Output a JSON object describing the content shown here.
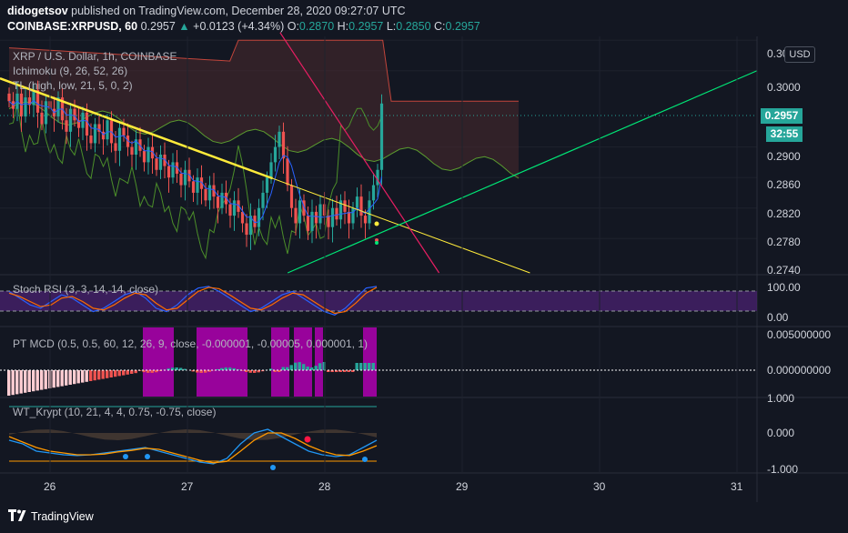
{
  "header": {
    "publisher": "didogetsov",
    "published_text": "published on TradingView.com, December 28, 2020 09:27:07 UTC",
    "symbol": "COINBASE:XRPUSD, 60",
    "last": "0.2957",
    "change": "+0.0123 (+4.34%)",
    "o_label": "O:",
    "o_val": "0.2870",
    "h_label": "H:",
    "h_val": "0.2957",
    "l_label": "L:",
    "l_val": "0.2850",
    "c_label": "C:",
    "c_val": "0.2957"
  },
  "legend": {
    "title": "XRP / U.S. Dollar, 1h, COINBASE",
    "ichimoku": "Ichimoku (9, 26, 52, 26)",
    "tl": "TL (high, low, 21, 5, 0, 2)",
    "stoch": "Stoch RSI (3, 3, 14, 14, close)",
    "ptmcd": "PT MCD (0.5, 0.5, 60, 12, 26, 9, close, -0.000001, -0.00005, 0.000001, 1)",
    "wt": "WT_Krypt (10, 21, 4, 4, 0.75, -0.75, close)"
  },
  "price_axis": {
    "currency": "USD",
    "ticks": [
      "0.3040",
      "0.3000",
      "0.2900",
      "0.2860",
      "0.2820",
      "0.2780",
      "0.2740"
    ],
    "current_price": "0.2957",
    "countdown": "32:55"
  },
  "stoch_axis": {
    "ticks": [
      "100.00",
      "0.00"
    ]
  },
  "mcd_axis": {
    "ticks": [
      "0.005000000",
      "0.000000000"
    ]
  },
  "wt_axis": {
    "ticks": [
      "1.000",
      "0.000",
      "-1.000"
    ]
  },
  "x_axis": {
    "labels": [
      "26",
      "27",
      "28",
      "29",
      "30",
      "31"
    ]
  },
  "footer": {
    "brand": "TradingView"
  },
  "colors": {
    "background": "#131722",
    "up": "#26a69a",
    "down": "#ef5350",
    "ichimoku_base": "#2962ff",
    "trend_yellow": "#ffeb3b",
    "trend_magenta": "#e91e63",
    "trend_green": "#00e676",
    "cloud": "#4a2a2e",
    "stoch_fill": "#4a2270",
    "mcd_magenta": "#b000b0"
  },
  "chart_data": {
    "type": "candlestick",
    "interval": "1h",
    "y_range": [
      0.2735,
      0.3045
    ],
    "x_ticks": [
      "26",
      "27",
      "28",
      "29",
      "30",
      "31"
    ],
    "last_price": 0.2957,
    "candles_close": [
      0.296,
      0.295,
      0.297,
      0.294,
      0.2965,
      0.2955,
      0.2975,
      0.2945,
      0.293,
      0.296,
      0.295,
      0.294,
      0.2965,
      0.2935,
      0.292,
      0.295,
      0.2935,
      0.2925,
      0.2945,
      0.2915,
      0.2905,
      0.293,
      0.292,
      0.291,
      0.2935,
      0.2905,
      0.2895,
      0.2925,
      0.2915,
      0.29,
      0.289,
      0.291,
      0.2895,
      0.288,
      0.29,
      0.2885,
      0.287,
      0.289,
      0.2875,
      0.286,
      0.288,
      0.2865,
      0.285,
      0.287,
      0.2855,
      0.284,
      0.286,
      0.2845,
      0.283,
      0.285,
      0.2835,
      0.282,
      0.284,
      0.2825,
      0.281,
      0.283,
      0.2815,
      0.28,
      0.2785,
      0.281,
      0.2795,
      0.282,
      0.284,
      0.286,
      0.288,
      0.29,
      0.292,
      0.2885,
      0.285,
      0.282,
      0.28,
      0.283,
      0.281,
      0.279,
      0.2815,
      0.28,
      0.2825,
      0.281,
      0.2795,
      0.282,
      0.2805,
      0.283,
      0.2815,
      0.28,
      0.282,
      0.2835,
      0.281,
      0.28,
      0.283,
      0.285,
      0.287,
      0.2957
    ],
    "trendlines": [
      {
        "name": "yellow",
        "from": [
          0.0,
          0.299
        ],
        "to": [
          0.7,
          0.2735
        ]
      },
      {
        "name": "magenta",
        "from": [
          0.37,
          0.305
        ],
        "to": [
          0.58,
          0.2735
        ]
      },
      {
        "name": "green",
        "from": [
          0.38,
          0.2735
        ],
        "to": [
          1.0,
          0.3
        ]
      }
    ],
    "stoch_rsi": {
      "k": [
        80,
        60,
        40,
        30,
        50,
        70,
        60,
        40,
        20,
        30,
        50,
        70,
        80,
        60,
        30,
        20,
        40,
        70,
        90,
        95,
        80,
        60,
        40,
        20,
        30,
        50,
        70,
        80,
        60,
        40,
        20,
        10,
        30,
        60,
        90,
        95
      ],
      "d": [
        75,
        65,
        50,
        35,
        40,
        60,
        65,
        50,
        30,
        25,
        40,
        60,
        75,
        70,
        45,
        25,
        30,
        55,
        80,
        92,
        88,
        70,
        50,
        30,
        25,
        40,
        60,
        75,
        70,
        50,
        30,
        15,
        20,
        45,
        75,
        92
      ]
    },
    "wt": {
      "wt1": [
        -0.2,
        -0.3,
        -0.5,
        -0.55,
        -0.6,
        -0.62,
        -0.6,
        -0.55,
        -0.5,
        -0.45,
        -0.4,
        -0.5,
        -0.6,
        -0.7,
        -0.8,
        -0.85,
        -0.7,
        -0.3,
        0.0,
        0.1,
        -0.1,
        -0.3,
        -0.5,
        -0.6,
        -0.65,
        -0.6,
        -0.4,
        -0.2
      ],
      "wt2": [
        -0.1,
        -0.25,
        -0.4,
        -0.5,
        -0.55,
        -0.6,
        -0.6,
        -0.58,
        -0.52,
        -0.48,
        -0.42,
        -0.45,
        -0.55,
        -0.65,
        -0.75,
        -0.82,
        -0.78,
        -0.5,
        -0.2,
        0.0,
        0.0,
        -0.15,
        -0.35,
        -0.5,
        -0.6,
        -0.62,
        -0.5,
        -0.35
      ]
    }
  }
}
